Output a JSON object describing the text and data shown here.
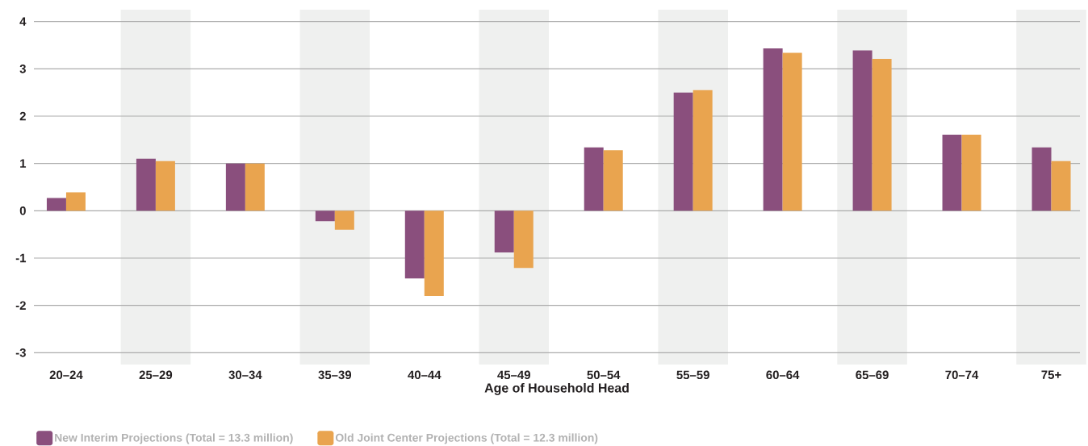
{
  "chart_data": {
    "type": "bar",
    "xlabel": "Age of Household Head",
    "categories": [
      "20–24",
      "25–29",
      "30–34",
      "35–39",
      "40–44",
      "45–49",
      "50–54",
      "55–59",
      "60–64",
      "65–69",
      "70–74",
      "75+"
    ],
    "series": [
      {
        "name": "New Interim Projections (Total = 13.3 million)",
        "color": "#8a4f7d",
        "values": [
          0.27,
          1.1,
          1.0,
          -0.22,
          -1.43,
          -0.88,
          1.34,
          2.5,
          3.43,
          3.39,
          1.61,
          1.34
        ]
      },
      {
        "name": "Old Joint Center Projections (Total = 12.3 million)",
        "color": "#e9a44f",
        "values": [
          0.39,
          1.05,
          1.0,
          -0.4,
          -1.8,
          -1.21,
          1.28,
          2.55,
          3.34,
          3.21,
          1.61,
          1.05
        ]
      }
    ],
    "ylim": [
      -3.25,
      4.25
    ],
    "yticks": [
      -3,
      -2,
      -1,
      0,
      1,
      2,
      3,
      4
    ],
    "grid": "y",
    "legend": "bottom left",
    "bands": [
      {
        "axis": "x",
        "from": "25–29",
        "to": "25–29",
        "color": "#eff0ef"
      },
      {
        "axis": "x",
        "from": "35–39",
        "to": "35–39",
        "color": "#eff0ef"
      },
      {
        "axis": "x",
        "from": "45–49",
        "to": "45–49",
        "color": "#eff0ef"
      },
      {
        "axis": "x",
        "from": "55–59",
        "to": "55–59",
        "color": "#eff0ef"
      },
      {
        "axis": "x",
        "from": "65–69",
        "to": "65–69",
        "color": "#eff0ef"
      },
      {
        "axis": "x",
        "from": "75+",
        "to": "75+",
        "color": "#eff0ef"
      }
    ]
  }
}
